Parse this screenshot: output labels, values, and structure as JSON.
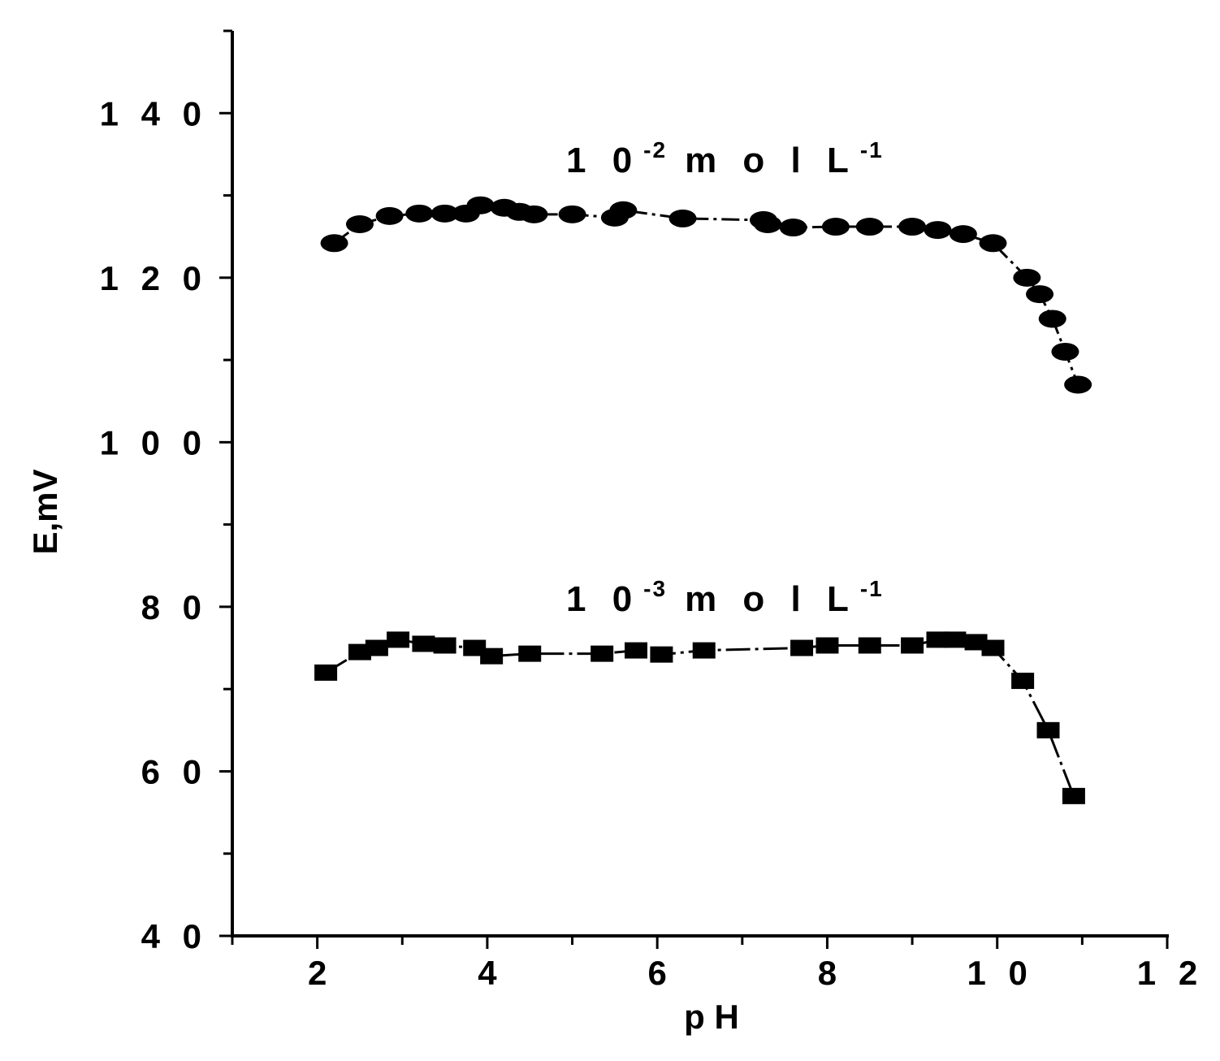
{
  "chart_data": {
    "type": "line",
    "title": "",
    "xlabel": "p H",
    "ylabel": "E,mV",
    "xlim": [
      1,
      12
    ],
    "ylim": [
      40,
      150
    ],
    "x_ticks": [
      2,
      4,
      6,
      8,
      10,
      12
    ],
    "x_tick_labels": [
      "2",
      "4",
      "6",
      "8",
      "1 0",
      "1 2"
    ],
    "y_ticks": [
      40,
      60,
      80,
      100,
      120,
      140
    ],
    "y_tick_labels": [
      "4 0",
      "6 0",
      "8 0",
      "1 0 0",
      "1 2 0",
      "1 4 0"
    ],
    "grid": false,
    "series": [
      {
        "marker": "circle",
        "annotation": {
          "base": "1 0",
          "exp1": "-2",
          "mid": "m o l  L",
          "exp2": "-1"
        },
        "x": [
          2.2,
          2.5,
          2.85,
          3.2,
          3.5,
          3.75,
          3.92,
          4.2,
          4.38,
          4.55,
          5.0,
          5.5,
          5.6,
          6.3,
          7.25,
          7.3,
          7.6,
          8.1,
          8.5,
          9.0,
          9.3,
          9.6,
          9.95,
          10.35,
          10.5,
          10.65,
          10.8,
          10.95
        ],
        "y": [
          124.2,
          126.5,
          127.5,
          127.8,
          127.8,
          127.8,
          128.8,
          128.5,
          128.0,
          127.7,
          127.7,
          127.3,
          128.2,
          127.2,
          127.0,
          126.5,
          126.1,
          126.2,
          126.2,
          126.2,
          125.8,
          125.3,
          124.2,
          120.0,
          118.0,
          115.0,
          111.0,
          107.0
        ]
      },
      {
        "marker": "square",
        "annotation": {
          "base": "1 0",
          "exp1": "-3",
          "mid": "m o l  L",
          "exp2": "-1"
        },
        "x": [
          2.1,
          2.5,
          2.7,
          2.95,
          3.25,
          3.5,
          3.85,
          4.05,
          4.5,
          5.35,
          5.75,
          6.05,
          6.55,
          7.7,
          8.0,
          8.5,
          9.0,
          9.3,
          9.5,
          9.75,
          9.95,
          10.3,
          10.6,
          10.9
        ],
        "y": [
          72.0,
          74.5,
          75.0,
          76.0,
          75.5,
          75.3,
          75.0,
          74.0,
          74.3,
          74.3,
          74.7,
          74.2,
          74.7,
          75.0,
          75.3,
          75.3,
          75.3,
          76.0,
          76.0,
          75.7,
          75.0,
          71.0,
          65.0,
          57.0
        ]
      }
    ]
  }
}
